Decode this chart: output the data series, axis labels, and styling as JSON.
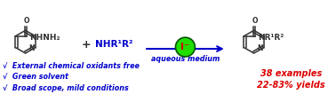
{
  "background_color": "#ffffff",
  "arrow_color": "#0000cc",
  "arrow_label": "aqueous medium",
  "reagent_circle_color": "#22dd00",
  "reagent_circle_edge": "#005500",
  "bullet_color": "#0000cc",
  "bullet_points": [
    "√  External chemical oxidants free",
    "√  Green solvent",
    "√  Broad scope, mild conditions"
  ],
  "result_color": "#dd0000",
  "result_lines": [
    "38 examples",
    "22-83% yields"
  ],
  "bond_color": "#333333"
}
